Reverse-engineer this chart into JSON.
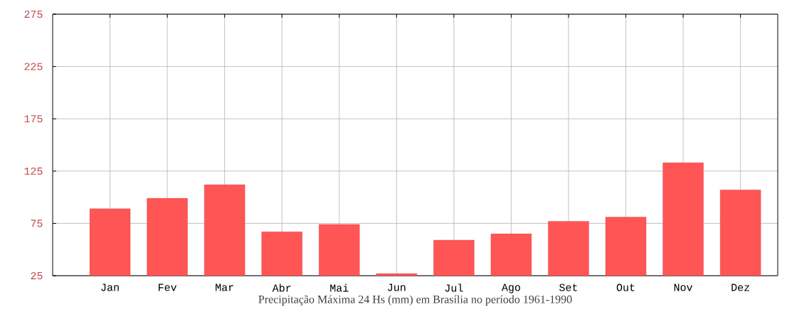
{
  "chart_data": {
    "type": "bar",
    "xlabel": "Precipitação Máxima 24 Hs (mm) em Brasília no período 1961-1990",
    "categories": [
      "Jan",
      "Fev",
      "Mar",
      "Abr",
      "Mai",
      "Jun",
      "Jul",
      "Ago",
      "Set",
      "Out",
      "Nov",
      "Dez"
    ],
    "values": [
      89,
      99,
      112,
      67,
      74,
      27,
      59,
      65,
      77,
      81,
      133,
      107
    ],
    "color": "#ff5555",
    "ylim": [
      25,
      275
    ],
    "yticks": [
      25,
      75,
      125,
      175,
      225,
      275
    ],
    "grid": true
  }
}
